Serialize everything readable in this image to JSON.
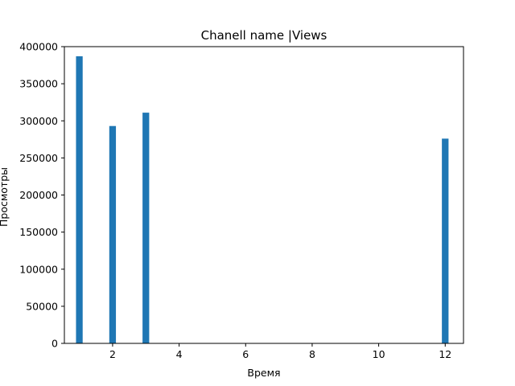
{
  "chart_data": {
    "type": "bar",
    "title": "Chanell name |Views",
    "xlabel": "Время",
    "ylabel": "Просмотры",
    "x": [
      1,
      2,
      3,
      12
    ],
    "values": [
      387000,
      293000,
      311000,
      276000
    ],
    "xlim": [
      0.55,
      12.55
    ],
    "ylim": [
      0,
      400000
    ],
    "xticks": [
      2,
      4,
      6,
      8,
      10,
      12
    ],
    "yticks": [
      0,
      50000,
      100000,
      150000,
      200000,
      250000,
      300000,
      350000,
      400000
    ],
    "bar_width": 0.2,
    "bar_color": "#1f77b4",
    "grid": false
  }
}
